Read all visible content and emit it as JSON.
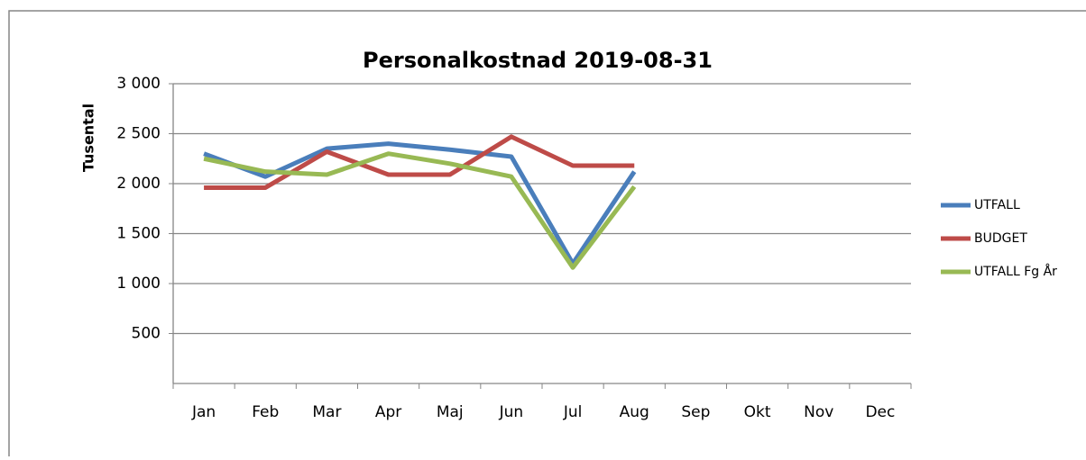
{
  "chart_data": {
    "type": "line",
    "title": "Personalkostnad 2019-08-31",
    "y_label": "Tusental",
    "categories": [
      "Jan",
      "Feb",
      "Mar",
      "Apr",
      "Maj",
      "Jun",
      "Jul",
      "Aug",
      "Sep",
      "Okt",
      "Nov",
      "Dec"
    ],
    "series": [
      {
        "name": "UTFALL",
        "color": "#4a7ebb",
        "values": [
          2300,
          2070,
          2350,
          2400,
          2340,
          2270,
          1200,
          2120,
          null,
          null,
          null,
          null
        ]
      },
      {
        "name": "BUDGET",
        "color": "#be4b48",
        "values": [
          1960,
          1960,
          2320,
          2090,
          2090,
          2470,
          2180,
          2180,
          null,
          null,
          null,
          null
        ]
      },
      {
        "name": "UTFALL Fg År",
        "color": "#98b954",
        "values": [
          2250,
          2120,
          2090,
          2300,
          2200,
          2070,
          1160,
          1970,
          null,
          null,
          null,
          null
        ]
      }
    ],
    "ylim": [
      0,
      3000
    ],
    "yticks": [
      500,
      {
        "value": 1000,
        "label": "1 000"
      },
      {
        "value": 1500,
        "label": "1 500"
      },
      {
        "value": 2000,
        "label": "2 000"
      },
      {
        "value": 2500,
        "label": "2 500"
      },
      {
        "value": 3000,
        "label": "3 000"
      }
    ],
    "grid": true,
    "legend": "right"
  }
}
